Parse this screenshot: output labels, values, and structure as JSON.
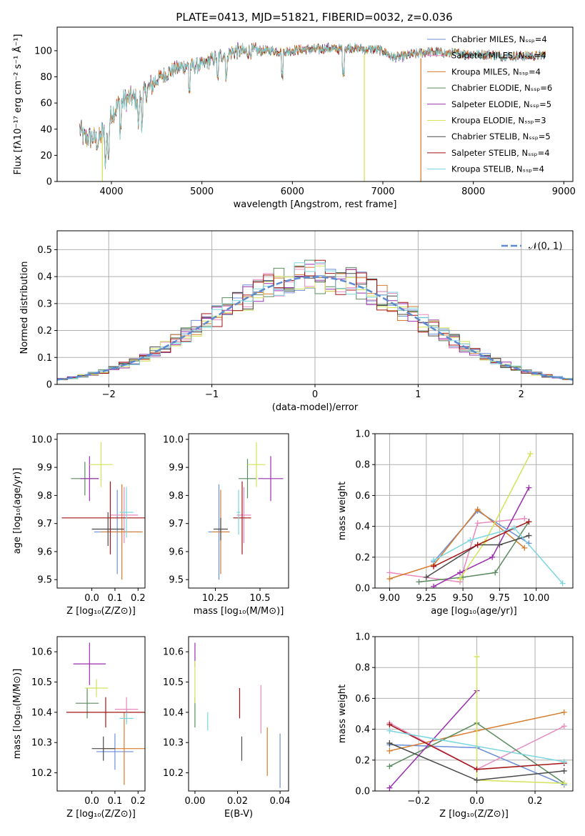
{
  "colors": {
    "series": [
      "#6b8fd8",
      "#e88abf",
      "#d77b2d",
      "#5b8b5e",
      "#9a2fae",
      "#d4e35a",
      "#4a4a4a",
      "#a31515",
      "#7ad6e0"
    ],
    "normal_fit": "#5b8ad0"
  },
  "chart_data": [
    {
      "id": "spectrum",
      "type": "line",
      "title": "PLATE=0413, MJD=51821, FIBERID=0032, z=0.036",
      "xlabel": "wavelength [Angstrom, rest frame]",
      "ylabel": "Flux [fλ10⁻¹⁷ erg cm⁻² s⁻¹ Å⁻¹]",
      "xlim": [
        3400,
        9100
      ],
      "ylim": [
        0,
        118
      ],
      "xticks": [
        4000,
        5000,
        6000,
        7000,
        8000,
        9000
      ],
      "yticks": [
        0,
        20,
        40,
        60,
        80,
        100
      ],
      "grid": false,
      "legend_position": "top-right",
      "legend": [
        "Chabrier MILES, Nₛₛₚ=4",
        "Salpeter MILES, Nₛₛₚ=4",
        "Kroupa MILES, Nₛₛₚ=4",
        "Chabrier ELODIE, Nₛₛₚ=6",
        "Salpeter ELODIE, Nₛₛₚ=5",
        "Kroupa ELODIE, Nₛₛₚ=3",
        "Chabrier STELIB, Nₛₛₚ=5",
        "Salpeter STELIB, Nₛₛₚ=4",
        "Kroupa STELIB, Nₛₛₚ=4"
      ],
      "continuum": [
        [
          3650,
          40
        ],
        [
          3700,
          33
        ],
        [
          3800,
          34
        ],
        [
          3850,
          30
        ],
        [
          3900,
          38
        ],
        [
          3950,
          33
        ],
        [
          4000,
          52
        ],
        [
          4100,
          60
        ],
        [
          4200,
          64
        ],
        [
          4300,
          62
        ],
        [
          4400,
          70
        ],
        [
          4500,
          78
        ],
        [
          4600,
          82
        ],
        [
          4700,
          86
        ],
        [
          4800,
          88
        ],
        [
          4900,
          88
        ],
        [
          5000,
          89
        ],
        [
          5100,
          93
        ],
        [
          5200,
          96
        ],
        [
          5300,
          98
        ],
        [
          5400,
          100
        ],
        [
          5500,
          99
        ],
        [
          5600,
          100
        ],
        [
          5700,
          100
        ],
        [
          5800,
          100
        ],
        [
          5900,
          99
        ],
        [
          6000,
          100
        ],
        [
          6100,
          101
        ],
        [
          6200,
          101
        ],
        [
          6300,
          101
        ],
        [
          6400,
          102
        ],
        [
          6500,
          101
        ],
        [
          6600,
          102
        ],
        [
          6700,
          102
        ],
        [
          6800,
          101
        ],
        [
          6900,
          101
        ],
        [
          7000,
          100
        ],
        [
          7100,
          95
        ],
        [
          7200,
          95
        ],
        [
          7300,
          97
        ],
        [
          7400,
          98
        ],
        [
          7500,
          99
        ],
        [
          7600,
          99
        ],
        [
          7700,
          98
        ],
        [
          7800,
          98
        ],
        [
          7900,
          98
        ],
        [
          8000,
          97
        ],
        [
          8100,
          97
        ],
        [
          8200,
          97
        ],
        [
          8300,
          96
        ],
        [
          8400,
          96
        ],
        [
          8500,
          96
        ],
        [
          8600,
          96
        ],
        [
          8700,
          96
        ],
        [
          8800,
          97
        ]
      ],
      "dropouts": [
        {
          "x": 6795,
          "series": 5
        },
        {
          "x": 7420,
          "series": 2
        },
        {
          "x": 3900,
          "series": 5
        }
      ]
    },
    {
      "id": "residuals",
      "type": "histogram",
      "xlabel": "(data-model)/error",
      "ylabel": "Normed distribution",
      "xlim": [
        -2.5,
        2.5
      ],
      "ylim": [
        0,
        0.57
      ],
      "xticks": [
        -2,
        -1,
        0,
        1,
        2
      ],
      "yticks": [
        0.0,
        0.1,
        0.2,
        0.3,
        0.4,
        0.5
      ],
      "grid": true,
      "legend_position": "top-right",
      "legend": [
        "𝒩(0, 1)"
      ],
      "bin_width": 0.1
    },
    {
      "id": "age_vs_Z",
      "type": "scatter",
      "xlabel": "Z [log₁₀(Z/Z⊙)]",
      "ylabel": "age  [log₁₀(age/yr)]",
      "xlim": [
        -0.15,
        0.23
      ],
      "ylim": [
        9.47,
        10.02
      ],
      "xticks": [
        0.0,
        0.1,
        0.2
      ],
      "yticks": [
        9.5,
        9.6,
        9.7,
        9.8,
        9.9,
        10.0
      ],
      "points": [
        {
          "x": 0.11,
          "y": 9.67,
          "xerr": 0.1,
          "yerr": 0.15
        },
        {
          "x": 0.14,
          "y": 9.73,
          "xerr": 0.06,
          "yerr": 0.1
        },
        {
          "x": 0.13,
          "y": 9.67,
          "xerr": 0.09,
          "yerr": 0.17
        },
        {
          "x": -0.03,
          "y": 9.86,
          "xerr": 0.06,
          "yerr": 0.06
        },
        {
          "x": -0.01,
          "y": 9.86,
          "xerr": 0.04,
          "yerr": 0.08
        },
        {
          "x": 0.04,
          "y": 9.91,
          "xerr": 0.05,
          "yerr": 0.08
        },
        {
          "x": 0.07,
          "y": 9.68,
          "xerr": 0.07,
          "yerr": 0.06
        },
        {
          "x": 0.08,
          "y": 9.72,
          "xerr": 0.21,
          "yerr": 0.13
        },
        {
          "x": 0.15,
          "y": 9.74,
          "xerr": 0.03,
          "yerr": 0.09
        }
      ]
    },
    {
      "id": "age_vs_mass",
      "type": "scatter",
      "xlabel": "mass [log₁₀(M/M⊙)]",
      "ylabel": "",
      "xlim": [
        10.1,
        10.66
      ],
      "ylim": [
        9.47,
        10.02
      ],
      "xticks": [
        10.25,
        10.5
      ],
      "yticks": [
        9.5,
        9.6,
        9.7,
        9.8,
        9.9,
        10.0
      ],
      "points": [
        {
          "x": 10.27,
          "y": 9.67,
          "xerr": 0.06,
          "yerr": 0.17
        },
        {
          "x": 10.41,
          "y": 9.73,
          "xerr": 0.04,
          "yerr": 0.1
        },
        {
          "x": 10.28,
          "y": 9.67,
          "xerr": 0.05,
          "yerr": 0.15
        },
        {
          "x": 10.43,
          "y": 9.86,
          "xerr": 0.05,
          "yerr": 0.07
        },
        {
          "x": 10.56,
          "y": 9.86,
          "xerr": 0.07,
          "yerr": 0.08
        },
        {
          "x": 10.48,
          "y": 9.91,
          "xerr": 0.05,
          "yerr": 0.08
        },
        {
          "x": 10.28,
          "y": 9.68,
          "xerr": 0.04,
          "yerr": 0.04
        },
        {
          "x": 10.4,
          "y": 9.72,
          "xerr": 0.05,
          "yerr": 0.13
        },
        {
          "x": 10.38,
          "y": 9.74,
          "xerr": 0.01,
          "yerr": 0.08
        }
      ]
    },
    {
      "id": "weight_vs_age",
      "type": "line",
      "xlabel": "age  [log₁₀(age/yr)]",
      "ylabel": "mass weight",
      "xlim": [
        8.9,
        10.25
      ],
      "ylim": [
        0,
        1
      ],
      "xticks": [
        9.0,
        9.25,
        9.5,
        9.75,
        10.0
      ],
      "yticks": [
        0.0,
        0.2,
        0.4,
        0.6,
        0.8,
        1.0
      ],
      "grid": true,
      "series": [
        {
          "x": [
            9.3,
            9.6,
            9.95
          ],
          "y": [
            0.17,
            0.5,
            0.29
          ]
        },
        {
          "x": [
            9.0,
            9.48,
            9.6,
            9.92
          ],
          "y": [
            0.1,
            0.04,
            0.42,
            0.45
          ]
        },
        {
          "x": [
            9.0,
            9.3,
            9.6,
            9.92
          ],
          "y": [
            0.06,
            0.15,
            0.51,
            0.26
          ]
        },
        {
          "x": [
            9.2,
            9.5,
            9.72,
            9.95
          ],
          "y": [
            0.04,
            0.07,
            0.1,
            0.43
          ]
        },
        {
          "x": [
            9.3,
            9.48,
            9.7,
            9.95
          ],
          "y": [
            0.01,
            0.1,
            0.2,
            0.65
          ]
        },
        {
          "x": [
            9.48,
            9.65,
            9.96
          ],
          "y": [
            0.06,
            0.3,
            0.87
          ]
        },
        {
          "x": [
            9.25,
            9.6,
            9.75,
            9.95
          ],
          "y": [
            0.07,
            0.28,
            0.28,
            0.34
          ]
        },
        {
          "x": [
            9.3,
            9.6,
            9.95
          ],
          "y": [
            0.14,
            0.28,
            0.43
          ]
        },
        {
          "x": [
            9.3,
            9.55,
            9.85,
            10.18
          ],
          "y": [
            0.18,
            0.31,
            0.39,
            0.03
          ]
        }
      ]
    },
    {
      "id": "mass_vs_Z",
      "type": "scatter",
      "xlabel": "Z [log₁₀(Z/Z⊙)]",
      "ylabel": "mass [log₁₀(M/M⊙)]",
      "xlim": [
        -0.15,
        0.23
      ],
      "ylim": [
        10.14,
        10.65
      ],
      "xticks": [
        0.0,
        0.1,
        0.2
      ],
      "yticks": [
        10.2,
        10.3,
        10.4,
        10.5,
        10.6
      ],
      "points": [
        {
          "x": 0.1,
          "y": 10.27,
          "xerr": 0.08,
          "yerr": 0.06
        },
        {
          "x": 0.15,
          "y": 10.41,
          "xerr": 0.05,
          "yerr": 0.04
        },
        {
          "x": 0.14,
          "y": 10.28,
          "xerr": 0.09,
          "yerr": 0.12
        },
        {
          "x": -0.02,
          "y": 10.43,
          "xerr": 0.05,
          "yerr": 0.05
        },
        {
          "x": -0.01,
          "y": 10.56,
          "xerr": 0.07,
          "yerr": 0.07
        },
        {
          "x": 0.02,
          "y": 10.48,
          "xerr": 0.05,
          "yerr": 0.03
        },
        {
          "x": 0.05,
          "y": 10.28,
          "xerr": 0.05,
          "yerr": 0.04
        },
        {
          "x": 0.06,
          "y": 10.4,
          "xerr": 0.17,
          "yerr": 0.05
        },
        {
          "x": 0.15,
          "y": 10.38,
          "xerr": 0.03,
          "yerr": 0.02
        }
      ]
    },
    {
      "id": "mass_vs_ebv",
      "type": "scatter",
      "xlabel": "E(B-V)",
      "ylabel": "",
      "xlim": [
        -0.003,
        0.044
      ],
      "ylim": [
        10.14,
        10.65
      ],
      "xticks": [
        0.0,
        0.02,
        0.04
      ],
      "yticks": [
        10.2,
        10.3,
        10.4,
        10.5,
        10.6
      ],
      "points": [
        {
          "x": 0.04,
          "y": 10.24,
          "yerr": 0.09
        },
        {
          "x": 0.031,
          "y": 10.41,
          "yerr": 0.08
        },
        {
          "x": 0.034,
          "y": 10.27,
          "yerr": 0.08
        },
        {
          "x": 0.0,
          "y": 10.4,
          "yerr": 0.05
        },
        {
          "x": 0.0,
          "y": 10.59,
          "yerr": 0.04
        },
        {
          "x": 0.0,
          "y": 10.5,
          "yerr": 0.07
        },
        {
          "x": 0.022,
          "y": 10.28,
          "yerr": 0.04
        },
        {
          "x": 0.021,
          "y": 10.43,
          "yerr": 0.05
        },
        {
          "x": 0.006,
          "y": 10.37,
          "yerr": 0.03
        }
      ]
    },
    {
      "id": "weight_vs_Z",
      "type": "line",
      "xlabel": "Z [log₁₀(Z/Z⊙)]",
      "ylabel": "mass weight",
      "xlim": [
        -0.35,
        0.33
      ],
      "ylim": [
        0,
        1
      ],
      "xticks": [
        -0.2,
        0.0,
        0.2
      ],
      "yticks": [
        0.0,
        0.2,
        0.4,
        0.6,
        0.8,
        1.0
      ],
      "grid": true,
      "series": [
        {
          "x": [
            -0.3,
            0.0,
            0.3
          ],
          "y": [
            0.3,
            0.28,
            0.04
          ]
        },
        {
          "x": [
            -0.3,
            0.0,
            0.3
          ],
          "y": [
            0.44,
            0.14,
            0.42
          ]
        },
        {
          "x": [
            -0.3,
            0.0,
            0.3
          ],
          "y": [
            0.26,
            0.39,
            0.51
          ]
        },
        {
          "x": [
            -0.3,
            0.0,
            0.3
          ],
          "y": [
            0.16,
            0.44,
            0.05
          ]
        },
        {
          "x": [
            -0.3,
            0.0
          ],
          "y": [
            0.02,
            0.65
          ]
        },
        {
          "x": [
            0.0,
            0.0,
            0.3
          ],
          "y": [
            0.87,
            0.07,
            0.05
          ]
        },
        {
          "x": [
            -0.3,
            0.0,
            0.3
          ],
          "y": [
            0.31,
            0.07,
            0.13
          ]
        },
        {
          "x": [
            -0.3,
            0.0,
            0.3
          ],
          "y": [
            0.43,
            0.14,
            0.18
          ]
        },
        {
          "x": [
            -0.3,
            0.3
          ],
          "y": [
            0.39,
            0.19
          ]
        }
      ]
    }
  ]
}
